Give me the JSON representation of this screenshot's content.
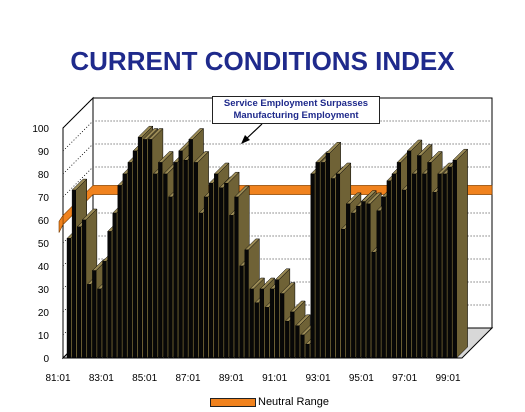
{
  "chart_data": {
    "type": "bar",
    "title": "CURRENT CONDITIONS INDEX",
    "xlabel": "",
    "ylabel": "",
    "ylim": [
      0,
      100
    ],
    "y_ticks": [
      "0",
      "10",
      "20",
      "30",
      "40",
      "50",
      "60",
      "70",
      "80",
      "90",
      "100"
    ],
    "x_tick_labels": [
      "81:01",
      "83:01",
      "85:01",
      "87:01",
      "89:01",
      "91:01",
      "93:01",
      "95:01",
      "97:01",
      "99:01"
    ],
    "grid": true,
    "legend_position": "bottom",
    "series": [
      {
        "name": "Neutral Range",
        "type": "band",
        "range": [
          58,
          62
        ],
        "color": "#f0821e"
      }
    ],
    "values": [
      52,
      73,
      57,
      60,
      32,
      38,
      30,
      42,
      55,
      63,
      75,
      80,
      85,
      90,
      96,
      95,
      95,
      80,
      85,
      80,
      70,
      85,
      90,
      86,
      95,
      85,
      63,
      70,
      76,
      80,
      74,
      76,
      62,
      70,
      40,
      47,
      30,
      24,
      30,
      22,
      30,
      34,
      28,
      16,
      20,
      14,
      10,
      6,
      80,
      85,
      85,
      89,
      78,
      80,
      56,
      67,
      63,
      66,
      68,
      67,
      46,
      64,
      70,
      77,
      80,
      85,
      73,
      90,
      80,
      88,
      80,
      85,
      72,
      80,
      80,
      83,
      86
    ],
    "annotation": {
      "lines": [
        "Service Employment Surpasses",
        "Manufacturing Employment"
      ]
    },
    "colors": {
      "bar_front": "#080808",
      "bar_top": "#9a8a55",
      "bar_side": "#6f6236",
      "band": "#f0821e",
      "title": "#1f2a8c"
    }
  }
}
